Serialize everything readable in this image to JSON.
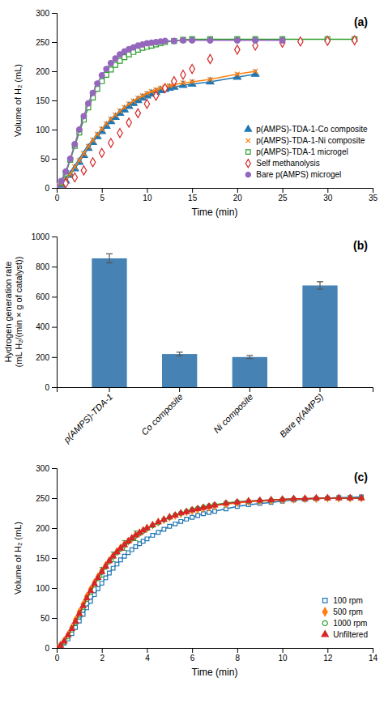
{
  "chart_data": [
    {
      "type": "line",
      "title": "(a)",
      "x_label": "Time (min)",
      "y_label": "Volume of H₂ (mL)",
      "xlim": [
        0,
        35
      ],
      "ylim": [
        0,
        300
      ],
      "xticks": [
        0,
        5,
        10,
        15,
        20,
        25,
        30,
        35
      ],
      "yticks": [
        0,
        50,
        100,
        150,
        200,
        250,
        300
      ],
      "legend": "lower right",
      "series": [
        {
          "name": "p(AMPS)-TDA-1-Co composite",
          "marker": "filled-triangle",
          "line_style": "solid",
          "x": [
            0,
            0.5,
            1,
            1.5,
            2,
            2.5,
            3,
            3.5,
            4,
            4.5,
            5,
            5.5,
            6,
            6.5,
            7,
            7.5,
            8,
            8.5,
            9,
            9.5,
            10,
            10.5,
            11,
            11.5,
            12,
            12.5,
            13,
            14,
            15,
            17,
            20,
            22
          ],
          "values": [
            0,
            5,
            12,
            22,
            33,
            44,
            56,
            68,
            78,
            88,
            97,
            106,
            114,
            121,
            128,
            134,
            140,
            145,
            150,
            154,
            158,
            161,
            164,
            167,
            169,
            171,
            173,
            176,
            178,
            182,
            190,
            195
          ]
        },
        {
          "name": "p(AMPS)-TDA-1-Ni composite",
          "marker": "x",
          "line_style": "solid",
          "x": [
            0,
            0.5,
            1,
            1.5,
            2,
            2.5,
            3,
            3.5,
            4,
            4.5,
            5,
            5.5,
            6,
            6.5,
            7,
            7.5,
            8,
            8.5,
            9,
            9.5,
            10,
            10.5,
            11,
            11.5,
            12,
            12.5,
            13,
            14,
            15,
            17,
            20,
            22
          ],
          "values": [
            0,
            6,
            14,
            24,
            36,
            47,
            59,
            71,
            82,
            92,
            101,
            110,
            118,
            125,
            132,
            138,
            144,
            149,
            154,
            158,
            162,
            165,
            168,
            171,
            173,
            175,
            177,
            180,
            182,
            186,
            195,
            200
          ]
        },
        {
          "name": "p(AMPS)-TDA-1 microgel",
          "marker": "hollow-square",
          "line_style": "solid",
          "x": [
            0,
            0.5,
            1,
            1.5,
            2,
            2.5,
            3,
            3.5,
            4,
            4.5,
            5,
            5.5,
            6,
            6.5,
            7,
            7.5,
            8,
            8.5,
            9,
            9.5,
            10,
            10.5,
            11,
            11.5,
            12,
            13,
            14,
            15,
            17,
            20,
            22,
            25,
            30,
            33
          ],
          "values": [
            0,
            10,
            25,
            48,
            72,
            95,
            117,
            138,
            155,
            170,
            183,
            194,
            203,
            211,
            218,
            224,
            229,
            233,
            237,
            240,
            242,
            244,
            246,
            248,
            250,
            252,
            254,
            255,
            255,
            255,
            255,
            255,
            255,
            255
          ]
        },
        {
          "name": "Self methanolysis",
          "marker": "hollow-diamond",
          "line_style": "none",
          "x": [
            0,
            1,
            2,
            3,
            4,
            5,
            6,
            7,
            8,
            9,
            10,
            11,
            12,
            13,
            14,
            15,
            17,
            20,
            22,
            25,
            27,
            30,
            33
          ],
          "values": [
            0,
            8,
            18,
            30,
            44,
            60,
            77,
            94,
            112,
            128,
            144,
            158,
            171,
            183,
            194,
            204,
            221,
            237,
            244,
            249,
            251,
            252,
            253
          ]
        },
        {
          "name": "Bare p(AMPS) microgel",
          "marker": "filled-circle",
          "line_style": "solid",
          "x": [
            0,
            0.5,
            1,
            1.5,
            2,
            2.5,
            3,
            3.5,
            4,
            4.5,
            5,
            5.5,
            6,
            6.5,
            7,
            7.5,
            8,
            8.5,
            9,
            9.5,
            10,
            10.5,
            11,
            11.5,
            12,
            13,
            14,
            15,
            17,
            20,
            22,
            25
          ],
          "values": [
            0,
            12,
            28,
            50,
            75,
            100,
            123,
            145,
            163,
            179,
            193,
            204,
            214,
            222,
            229,
            234,
            238,
            241,
            244,
            246,
            248,
            249,
            250,
            251,
            252,
            252,
            253,
            253,
            253,
            253,
            253,
            253
          ]
        }
      ]
    },
    {
      "type": "bar",
      "title": "(b)",
      "y_label": "Hydrogen generation rate\n(mL H₂/(min × g of catalyst))",
      "ylim": [
        0,
        1000
      ],
      "yticks": [
        0,
        200,
        400,
        600,
        800,
        1000
      ],
      "categories": [
        "p(AMPS)-TDA-1",
        "Co composite",
        "Ni composite",
        "Bare p(AMPS)"
      ],
      "values": [
        855,
        220,
        200,
        675
      ],
      "errors": [
        30,
        12,
        10,
        25
      ],
      "color": "steelblue"
    },
    {
      "type": "line",
      "title": "(c)",
      "x_label": "Time (min)",
      "y_label": "Volume of H₂ (mL)",
      "xlim": [
        0,
        14
      ],
      "ylim": [
        0,
        300
      ],
      "xticks": [
        0,
        2,
        4,
        6,
        8,
        10,
        12,
        14
      ],
      "yticks": [
        0,
        50,
        100,
        150,
        200,
        250,
        300
      ],
      "legend": "lower right",
      "series": [
        {
          "name": "100 rpm",
          "marker": "hollow-square",
          "line_style": "solid",
          "x": [
            0,
            0.17,
            0.33,
            0.5,
            0.67,
            0.83,
            1.0,
            1.17,
            1.33,
            1.5,
            1.67,
            1.83,
            2.0,
            2.17,
            2.33,
            2.5,
            2.67,
            2.83,
            3.0,
            3.17,
            3.33,
            3.5,
            3.67,
            3.83,
            4.0,
            4.25,
            4.5,
            4.75,
            5.0,
            5.25,
            5.5,
            5.75,
            6.0,
            6.25,
            6.5,
            6.75,
            7.0,
            7.5,
            8.0,
            8.5,
            9.0,
            9.5,
            10.0,
            10.5,
            11.0,
            11.5,
            12.0,
            12.5,
            13.0,
            13.5
          ],
          "values": [
            0,
            3,
            8,
            15,
            24,
            34,
            45,
            56,
            67,
            78,
            89,
            99,
            108,
            117,
            125,
            133,
            140,
            147,
            153,
            159,
            164,
            169,
            174,
            178,
            182,
            188,
            193,
            198,
            203,
            207,
            211,
            215,
            218,
            221,
            224,
            226,
            228,
            232,
            236,
            239,
            241,
            243,
            245,
            247,
            248,
            249,
            250,
            251,
            251,
            252
          ]
        },
        {
          "name": "500 rpm",
          "marker": "filled-diamond",
          "line_style": "solid",
          "x": [
            0,
            0.17,
            0.33,
            0.5,
            0.67,
            0.83,
            1.0,
            1.17,
            1.33,
            1.5,
            1.67,
            1.83,
            2.0,
            2.17,
            2.33,
            2.5,
            2.67,
            2.83,
            3.0,
            3.17,
            3.33,
            3.5,
            3.67,
            3.83,
            4.0,
            4.25,
            4.5,
            4.75,
            5.0,
            5.25,
            5.5,
            5.75,
            6.0,
            6.25,
            6.5,
            6.75,
            7.0,
            7.5,
            8.0,
            8.5,
            9.0,
            9.5,
            10.0,
            10.5,
            11.0,
            11.5,
            12.0,
            12.5,
            13.0,
            13.5
          ],
          "values": [
            0,
            5,
            12,
            22,
            34,
            47,
            60,
            73,
            86,
            98,
            109,
            119,
            129,
            138,
            146,
            154,
            161,
            167,
            173,
            178,
            183,
            188,
            192,
            196,
            200,
            205,
            210,
            214,
            218,
            221,
            224,
            227,
            229,
            231,
            233,
            235,
            237,
            240,
            242,
            244,
            245,
            246,
            247,
            248,
            249,
            249,
            250,
            250,
            250,
            250
          ]
        },
        {
          "name": "1000 rpm",
          "marker": "hollow-circle",
          "line_style": "solid",
          "x": [
            0,
            0.17,
            0.33,
            0.5,
            0.67,
            0.83,
            1.0,
            1.17,
            1.33,
            1.5,
            1.67,
            1.83,
            2.0,
            2.17,
            2.33,
            2.5,
            2.67,
            2.83,
            3.0,
            3.17,
            3.33,
            3.5,
            3.67,
            3.83,
            4.0,
            4.25,
            4.5,
            4.75,
            5.0,
            5.25,
            5.5,
            5.75,
            6.0,
            6.25,
            6.5,
            6.75,
            7.0,
            7.5,
            8.0,
            8.5,
            9.0,
            9.5,
            10.0,
            10.5,
            11.0,
            11.5,
            12.0,
            12.5,
            13.0,
            13.5
          ],
          "values": [
            0,
            4,
            10,
            19,
            30,
            42,
            55,
            68,
            81,
            93,
            105,
            116,
            126,
            135,
            144,
            152,
            159,
            165,
            171,
            177,
            182,
            187,
            191,
            195,
            199,
            204,
            209,
            214,
            218,
            222,
            225,
            228,
            231,
            233,
            235,
            237,
            239,
            242,
            244,
            245,
            246,
            247,
            248,
            249,
            249,
            250,
            250,
            250,
            250,
            250
          ],
          "errors": [
            null,
            null,
            null,
            null,
            null,
            null,
            null,
            null,
            null,
            null,
            null,
            null,
            8,
            null,
            null,
            8,
            null,
            null,
            8,
            null,
            null,
            8,
            null,
            null,
            null,
            null,
            null,
            null,
            null,
            null,
            null,
            null,
            null,
            null,
            null,
            null,
            null,
            null,
            null,
            null,
            null,
            null,
            null,
            null,
            null,
            null,
            null,
            null,
            null,
            null
          ]
        },
        {
          "name": "Unfiltered",
          "marker": "filled-triangle",
          "line_style": "solid",
          "x": [
            0,
            0.17,
            0.33,
            0.5,
            0.67,
            0.83,
            1.0,
            1.17,
            1.33,
            1.5,
            1.67,
            1.83,
            2.0,
            2.17,
            2.33,
            2.5,
            2.67,
            2.83,
            3.0,
            3.17,
            3.33,
            3.5,
            3.67,
            3.83,
            4.0,
            4.25,
            4.5,
            4.75,
            5.0,
            5.25,
            5.5,
            5.75,
            6.0,
            6.25,
            6.5,
            6.75,
            7.0,
            7.5,
            8.0,
            8.5,
            9.0,
            9.5,
            10.0,
            10.5,
            11.0,
            11.5,
            12.0,
            12.5,
            13.0,
            13.5
          ],
          "values": [
            0,
            4,
            11,
            21,
            32,
            44,
            57,
            70,
            83,
            95,
            107,
            117,
            127,
            136,
            145,
            153,
            160,
            166,
            172,
            178,
            183,
            188,
            192,
            196,
            200,
            205,
            210,
            214,
            218,
            221,
            225,
            227,
            230,
            232,
            234,
            236,
            238,
            241,
            243,
            245,
            246,
            247,
            248,
            249,
            249,
            250,
            250,
            250,
            250,
            250
          ]
        }
      ]
    }
  ]
}
